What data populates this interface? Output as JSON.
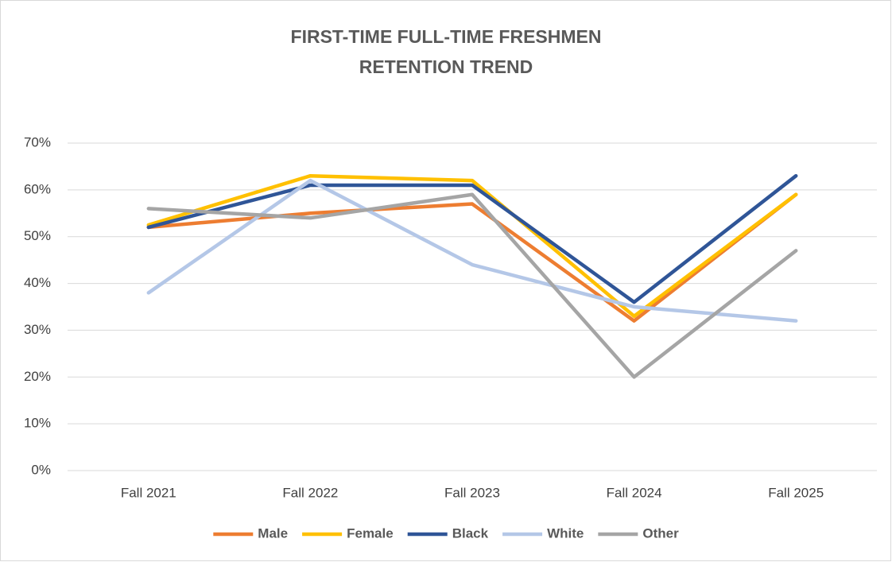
{
  "chart_data": {
    "type": "line",
    "title": [
      "FIRST-TIME FULL-TIME FRESHMEN",
      "RETENTION TREND"
    ],
    "categories": [
      "Fall 2021",
      "Fall 2022",
      "Fall 2023",
      "Fall 2024",
      "Fall 2025"
    ],
    "series": [
      {
        "name": "Male",
        "color": "#ed7d31",
        "values": [
          52,
          55,
          57,
          32,
          59
        ]
      },
      {
        "name": "Female",
        "color": "#ffc000",
        "values": [
          52.5,
          63,
          62,
          33,
          59
        ]
      },
      {
        "name": "Black",
        "color": "#2f5597",
        "values": [
          52,
          61,
          61,
          36,
          63
        ]
      },
      {
        "name": "White",
        "color": "#b4c7e7",
        "values": [
          38,
          62,
          44,
          35,
          32
        ]
      },
      {
        "name": "Other",
        "color": "#a5a5a5",
        "values": [
          56,
          54,
          59,
          20,
          47
        ]
      }
    ],
    "ylim": [
      0,
      70
    ],
    "yticks": [
      {
        "value": 0,
        "label": "0%"
      },
      {
        "value": 10,
        "label": "10%"
      },
      {
        "value": 20,
        "label": "20%"
      },
      {
        "value": 30,
        "label": "30%"
      },
      {
        "value": 40,
        "label": "40%"
      },
      {
        "value": 50,
        "label": "50%"
      },
      {
        "value": 60,
        "label": "60%"
      },
      {
        "value": 70,
        "label": "70%"
      }
    ],
    "grid": true,
    "legend": "bottom"
  }
}
